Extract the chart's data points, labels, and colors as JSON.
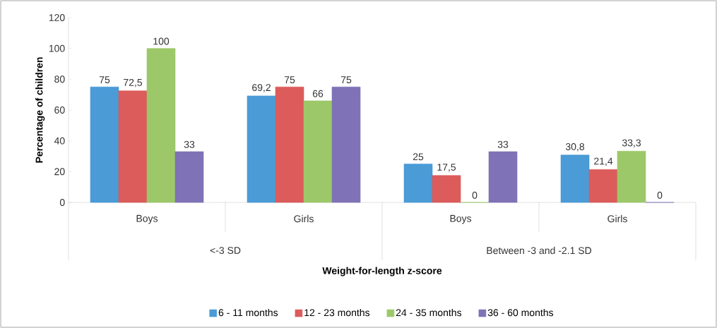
{
  "chart_data": {
    "type": "bar",
    "xlabel": "Weight-for-length z-score",
    "ylabel": "Percentage of children",
    "categories": [
      "Boys",
      "Girls",
      "Boys",
      "Girls"
    ],
    "annotations": [
      "<-3 SD",
      "Between -3 and -2.1 SD"
    ],
    "series": [
      {
        "name": "6 - 11 months",
        "color": "#4a9bd6",
        "values": [
          75,
          69.2,
          25,
          30.8
        ],
        "value_labels": [
          "75",
          "69,2",
          "25",
          "30,8"
        ]
      },
      {
        "name": "12 - 23 months",
        "color": "#dc5c5c",
        "values": [
          72.5,
          75,
          17.5,
          21.4
        ],
        "value_labels": [
          "72,5",
          "75",
          "17,5",
          "21,4"
        ]
      },
      {
        "name": "24 - 35 months",
        "color": "#9dc86a",
        "values": [
          100,
          66,
          0,
          33.3
        ],
        "value_labels": [
          "100",
          "66",
          "0",
          "33,3"
        ]
      },
      {
        "name": "36 - 60 months",
        "color": "#7f72b6",
        "values": [
          33,
          75,
          33,
          0
        ],
        "value_labels": [
          "33",
          "75",
          "33",
          "0"
        ]
      }
    ],
    "ylim": [
      0,
      120
    ],
    "yticks": [
      0,
      20,
      40,
      60,
      80,
      100,
      120
    ],
    "legend": "bottom"
  }
}
